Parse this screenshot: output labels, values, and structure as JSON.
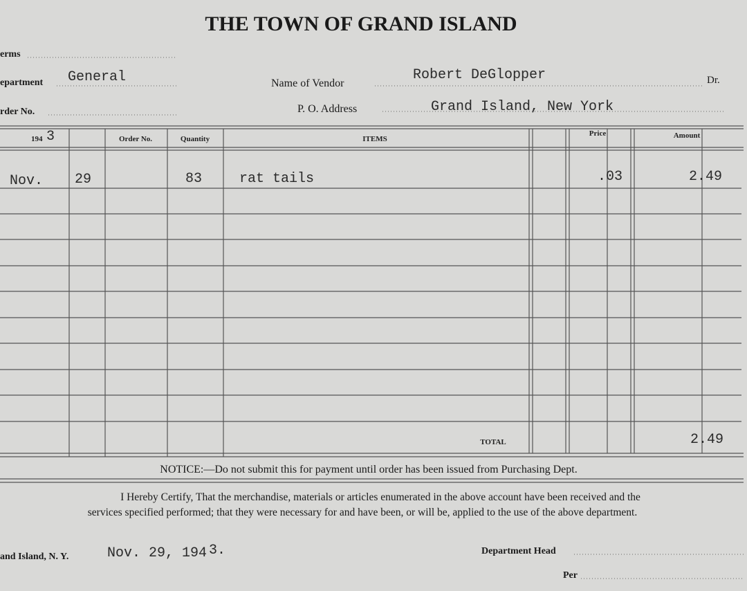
{
  "header": {
    "title": "THE TOWN OF GRAND ISLAND"
  },
  "fields": {
    "terms": {
      "label": "erms"
    },
    "department": {
      "label": "epartment",
      "value": "General"
    },
    "order_no": {
      "label": "rder No."
    },
    "vendor": {
      "label": "Name of Vendor",
      "value": "Robert DeGlopper",
      "suffix": "Dr."
    },
    "address": {
      "label": "P. O. Address",
      "value": "Grand Island, New York"
    }
  },
  "table": {
    "columns": {
      "year_printed": "194",
      "year_written": "3",
      "order_no": "Order No.",
      "quantity": "Quantity",
      "items": "ITEMS",
      "price": "Price",
      "amount": "Amount"
    },
    "rows": [
      [
        "Nov.",
        "29",
        "83",
        "rat tails",
        ".03",
        "2.49"
      ]
    ],
    "total_label": "TOTAL",
    "total": "2.49"
  },
  "notice": "NOTICE:—Do not submit this for payment until order has been issued from Purchasing Dept.",
  "certify": [
    "I Hereby Certify, That the merchandise, materials or articles enumerated in the above account have been received and the",
    "services specified performed; that they were necessary for and have been, or will be, applied to the use of the above department."
  ],
  "footer": {
    "place": "and Island, N. Y.",
    "date": "Nov. 29, 194",
    "date_year": "3.",
    "department_head": "Department Head",
    "per": "Per"
  }
}
